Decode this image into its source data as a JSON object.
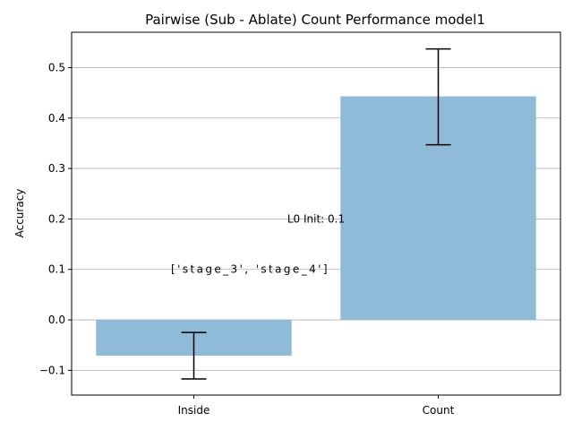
{
  "chart_data": {
    "type": "bar",
    "title": "Pairwise (Sub - Ablate) Count Performance model1",
    "xlabel": "",
    "ylabel": "Accuracy",
    "categories": [
      "Inside",
      "Count"
    ],
    "values": [
      -0.071,
      0.443
    ],
    "error_low": [
      -0.117,
      0.347
    ],
    "error_high": [
      -0.025,
      0.537
    ],
    "ylim": [
      -0.149,
      0.57
    ],
    "yticks": [
      -0.1,
      0.0,
      0.1,
      0.2,
      0.3,
      0.4,
      0.5
    ],
    "ytick_labels": [
      "−0.1",
      "0.0",
      "0.1",
      "0.2",
      "0.3",
      "0.4",
      "0.5"
    ],
    "grid": "y",
    "bar_color": "#8fbbd9",
    "annotations": [
      {
        "text": "L0 Init: 0.1",
        "x": 0.5,
        "y": 0.2
      },
      {
        "text": "['stage_3', 'stage_4']",
        "x": 0.0,
        "y": 0.1
      }
    ]
  }
}
